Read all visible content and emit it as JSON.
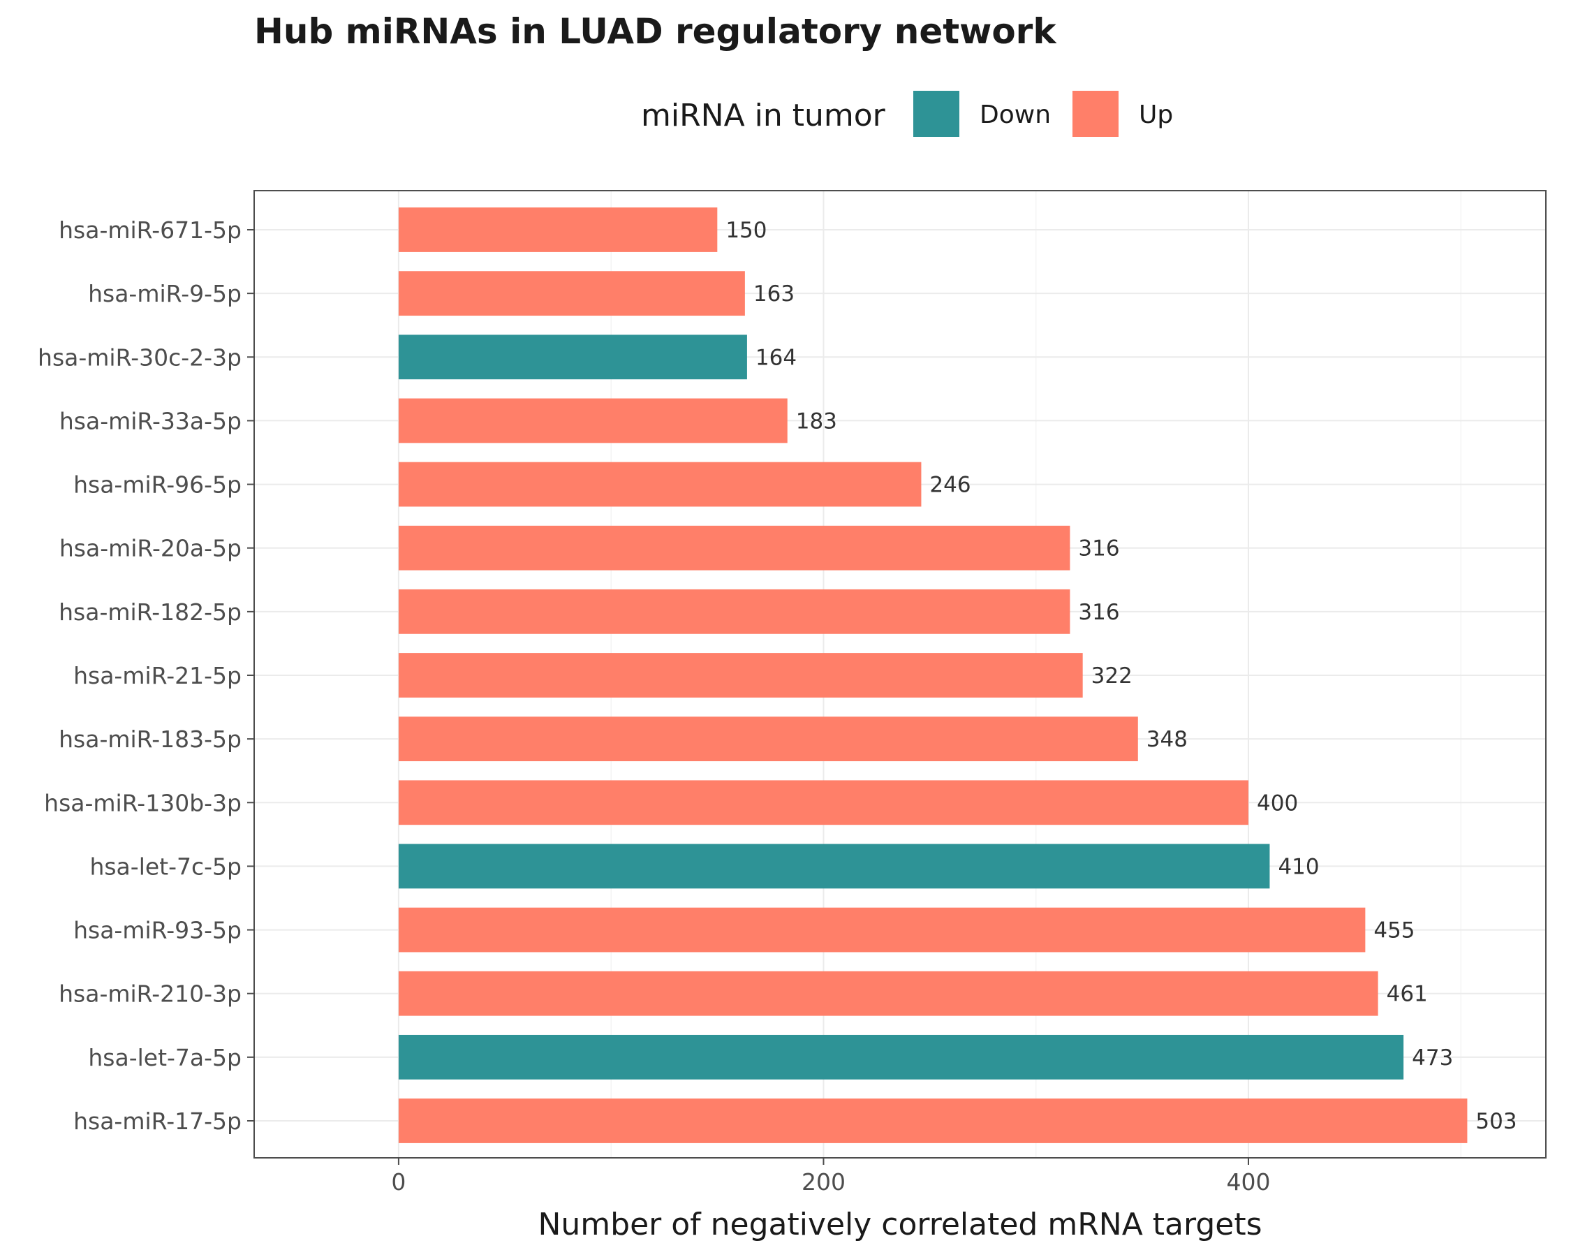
{
  "chart_data": {
    "type": "bar",
    "orientation": "horizontal",
    "title": "Hub miRNAs in LUAD regulatory network",
    "xlabel": "Number of negatively correlated mRNA targets",
    "ylabel": "",
    "xlim": [
      -68,
      540
    ],
    "xticks": [
      0,
      200,
      400
    ],
    "grid": true,
    "legend": {
      "title": "miRNA in tumor",
      "placement": "top",
      "entries": [
        {
          "label": "Down",
          "color": "#2E9396"
        },
        {
          "label": "Up",
          "color": "#FF7F69"
        }
      ]
    },
    "categories": [
      "hsa-miR-671-5p",
      "hsa-miR-9-5p",
      "hsa-miR-30c-2-3p",
      "hsa-miR-33a-5p",
      "hsa-miR-96-5p",
      "hsa-miR-20a-5p",
      "hsa-miR-182-5p",
      "hsa-miR-21-5p",
      "hsa-miR-183-5p",
      "hsa-miR-130b-3p",
      "hsa-let-7c-5p",
      "hsa-miR-93-5p",
      "hsa-miR-210-3p",
      "hsa-let-7a-5p",
      "hsa-miR-17-5p"
    ],
    "values": [
      150,
      163,
      164,
      183,
      246,
      316,
      316,
      322,
      348,
      400,
      410,
      455,
      461,
      473,
      503
    ],
    "groups": [
      "Up",
      "Up",
      "Down",
      "Up",
      "Up",
      "Up",
      "Up",
      "Up",
      "Up",
      "Up",
      "Down",
      "Up",
      "Up",
      "Down",
      "Up"
    ],
    "colors": {
      "Down": "#2E9396",
      "Up": "#FF7F69"
    }
  }
}
